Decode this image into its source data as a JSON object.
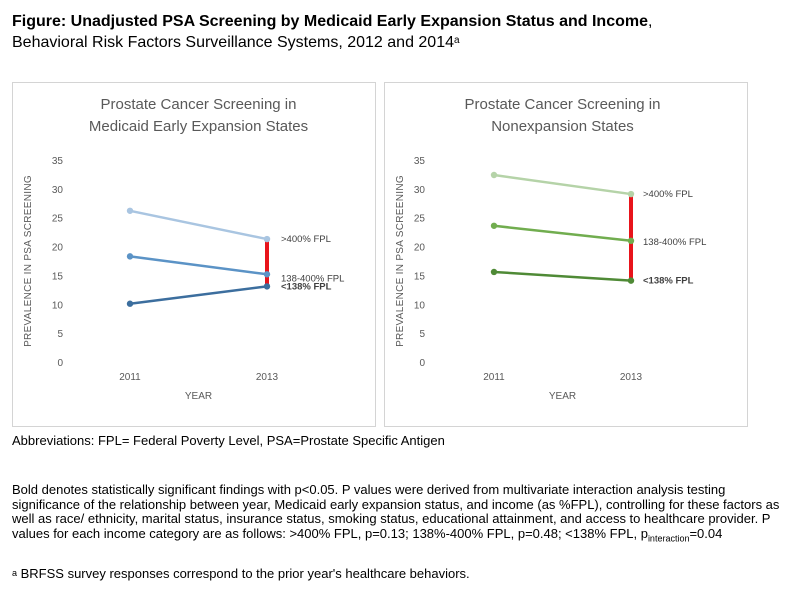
{
  "figure": {
    "title_bold": "Figure: Unadjusted PSA Screening by Medicaid Early Expansion Status and Income",
    "title_comma": ",",
    "title_rest": "Behavioral Risk Factors Surveillance Systems, 2012 and 2014",
    "title_sup": "a"
  },
  "chart_data": [
    {
      "type": "line",
      "title": [
        "Prostate Cancer Screening in",
        "Medicaid Early Expansion States"
      ],
      "xlabel": "YEAR",
      "ylabel": "PREVALENCE IN PSA SCREENING",
      "categories": [
        "2011",
        "2013"
      ],
      "ylim": [
        0,
        35
      ],
      "yticks": [
        "0",
        "5",
        "10",
        "15",
        "20",
        "25",
        "30",
        "35"
      ],
      "grid": false,
      "series": [
        {
          "name": ">400% FPL",
          "values": [
            26.2,
            21.3
          ],
          "color": "#a9c5e1",
          "bold": false
        },
        {
          "name": "138-400% FPL",
          "values": [
            18.3,
            15.2
          ],
          "color": "#5b93c6",
          "bold": false
        },
        {
          "name": "<138% FPL",
          "values": [
            10.1,
            13.1
          ],
          "color": "#3c6e9e",
          "bold": true
        }
      ],
      "range_bar": {
        "from": 13.1,
        "to": 21.3,
        "color": "#e8141b"
      }
    },
    {
      "type": "line",
      "title": [
        "Prostate Cancer Screening in",
        "Nonexpansion States"
      ],
      "xlabel": "YEAR",
      "ylabel": "PREVALENCE IN PSA SCREENING",
      "categories": [
        "2011",
        "2013"
      ],
      "ylim": [
        0,
        35
      ],
      "yticks": [
        "0",
        "5",
        "10",
        "15",
        "20",
        "25",
        "30",
        "35"
      ],
      "grid": false,
      "series": [
        {
          "name": ">400% FPL",
          "values": [
            32.4,
            29.1
          ],
          "color": "#b5d3a8",
          "bold": false
        },
        {
          "name": "138-400% FPL",
          "values": [
            23.6,
            21.0
          ],
          "color": "#71ad4f",
          "bold": false
        },
        {
          "name": "<138% FPL",
          "values": [
            15.6,
            14.1
          ],
          "color": "#4f8a36",
          "bold": true
        }
      ],
      "range_bar": {
        "from": 14.1,
        "to": 29.1,
        "color": "#e8141b"
      }
    }
  ],
  "abbreviations": "Abbreviations: FPL= Federal Poverty Level, PSA=Prostate Specific Antigen",
  "notes": {
    "main": "Bold denotes statistically significant findings with p<0.05. P values were derived from multivariate interaction analysis testing significance of the relationship between year, Medicaid early expansion status, and income (as %FPL), controlling for these factors as well as race/ ethnicity, marital status, insurance status, smoking status, educational attainment, and access to healthcare provider. P values for each income category are as follows: >400% FPL, p=0.13; 138%-400% FPL, p=0.48; <138% FPL, p",
    "sub": "interaction",
    "end": "=0.04"
  },
  "footnote": {
    "sup": "a",
    "text": " BRFSS survey responses correspond to the prior year's healthcare behaviors."
  }
}
